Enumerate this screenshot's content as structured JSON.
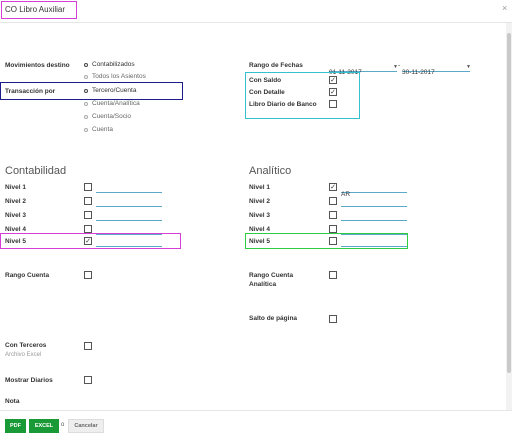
{
  "dialog": {
    "title": "CO Libro Auxiliar",
    "close_label": "×"
  },
  "left": {
    "movimientos_label": "Movimientos destino",
    "movimientos_options": [
      "Contabilizados",
      "Todos los Asientos"
    ],
    "transaccion_label": "Transacción por",
    "transaccion_options": [
      "Tercero/Cuenta",
      "Cuenta/Analítica",
      "Cuenta/Socio",
      "Cuenta"
    ]
  },
  "right": {
    "rango_label": "Rango de Fechas",
    "date_from": "01-11-2017",
    "date_to": "30-11-2017",
    "date_sep": "-",
    "checks": [
      {
        "label": "Con Saldo",
        "checked": true
      },
      {
        "label": "Con Detalle",
        "checked": true
      },
      {
        "label": "Libro Diario de Banco",
        "checked": false
      }
    ]
  },
  "contabilidad": {
    "title": "Contabilidad",
    "levels": [
      {
        "label": "Nivel 1",
        "checked": false,
        "value": ""
      },
      {
        "label": "Nivel 2",
        "checked": false,
        "value": ""
      },
      {
        "label": "Nivel 3",
        "checked": false,
        "value": ""
      },
      {
        "label": "Nivel 4",
        "checked": false,
        "value": ""
      },
      {
        "label": "Nivel 5",
        "checked": true,
        "value": ""
      }
    ]
  },
  "analitico": {
    "title": "Analítico",
    "levels": [
      {
        "label": "Nivel 1",
        "checked": true,
        "value": "AR"
      },
      {
        "label": "Nivel 2",
        "checked": false,
        "value": ""
      },
      {
        "label": "Nivel 3",
        "checked": false,
        "value": ""
      },
      {
        "label": "Nivel 4",
        "checked": false,
        "value": ""
      },
      {
        "label": "Nivel 5",
        "checked": false,
        "value": ""
      }
    ]
  },
  "extras": {
    "rango_cuenta": "Rango Cuenta",
    "rango_cuenta_analitica": [
      "Rango Cuenta",
      "Analítica"
    ],
    "salto_pagina": "Salto de página",
    "con_terceros": "Con Terceros",
    "archivo_excel": "Archivo Excel",
    "mostrar_diarios": "Mostrar Diarios",
    "nota": "Nota"
  },
  "footer": {
    "pdf": "PDF",
    "excel": "EXCEL",
    "or": "o",
    "cancel": "Cancelar"
  },
  "colors": {
    "magenta": "#d63fd6",
    "navy": "#1c1c8c",
    "cyan": "#35c0d0",
    "green": "#2ecc40",
    "button_green": "#1a9a37"
  }
}
